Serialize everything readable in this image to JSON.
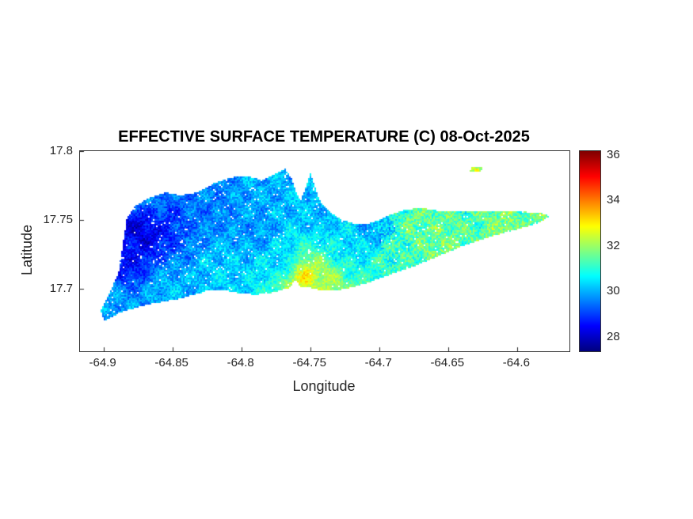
{
  "figure": {
    "background": "#ffffff",
    "axes_color": "#262626"
  },
  "chart_data": {
    "type": "heatmap",
    "title": "EFFECTIVE SURFACE TEMPERATURE (C) 08-Oct-2025",
    "xlabel": "Longitude",
    "ylabel": "Latitude",
    "xlim": [
      -64.917,
      -64.562
    ],
    "ylim": [
      17.655,
      17.8
    ],
    "xticks": [
      -64.9,
      -64.85,
      -64.8,
      -64.75,
      -64.7,
      -64.65,
      -64.6
    ],
    "yticks": [
      17.8,
      17.75,
      17.7
    ],
    "grid": false,
    "colorbar": {
      "min": 27.4,
      "max": 36.2,
      "ticks": [
        28,
        30,
        32,
        34,
        36
      ],
      "colormap": "jet",
      "position": "right"
    },
    "island_outline": [
      [
        -64.899,
        17.677
      ],
      [
        -64.902,
        17.684
      ],
      [
        -64.896,
        17.696
      ],
      [
        -64.889,
        17.712
      ],
      [
        -64.886,
        17.732
      ],
      [
        -64.883,
        17.751
      ],
      [
        -64.877,
        17.76
      ],
      [
        -64.867,
        17.766
      ],
      [
        -64.855,
        17.77
      ],
      [
        -64.844,
        17.768
      ],
      [
        -64.832,
        17.77
      ],
      [
        -64.819,
        17.777
      ],
      [
        -64.807,
        17.781
      ],
      [
        -64.796,
        17.782
      ],
      [
        -64.785,
        17.779
      ],
      [
        -64.774,
        17.784
      ],
      [
        -64.768,
        17.787
      ],
      [
        -64.763,
        17.779
      ],
      [
        -64.76,
        17.77
      ],
      [
        -64.757,
        17.764
      ],
      [
        -64.753,
        17.774
      ],
      [
        -64.75,
        17.784
      ],
      [
        -64.747,
        17.776
      ],
      [
        -64.743,
        17.764
      ],
      [
        -64.736,
        17.756
      ],
      [
        -64.727,
        17.75
      ],
      [
        -64.716,
        17.747
      ],
      [
        -64.705,
        17.748
      ],
      [
        -64.694,
        17.753
      ],
      [
        -64.683,
        17.757
      ],
      [
        -64.671,
        17.759
      ],
      [
        -64.658,
        17.757
      ],
      [
        -64.645,
        17.756
      ],
      [
        -64.632,
        17.757
      ],
      [
        -64.619,
        17.756
      ],
      [
        -64.606,
        17.757
      ],
      [
        -64.594,
        17.756
      ],
      [
        -64.583,
        17.755
      ],
      [
        -64.576,
        17.753
      ],
      [
        -64.584,
        17.748
      ],
      [
        -64.594,
        17.745
      ],
      [
        -64.605,
        17.742
      ],
      [
        -64.616,
        17.739
      ],
      [
        -64.628,
        17.735
      ],
      [
        -64.64,
        17.731
      ],
      [
        -64.652,
        17.726
      ],
      [
        -64.664,
        17.721
      ],
      [
        -64.676,
        17.716
      ],
      [
        -64.688,
        17.712
      ],
      [
        -64.699,
        17.708
      ],
      [
        -64.71,
        17.704
      ],
      [
        -64.721,
        17.701
      ],
      [
        -64.731,
        17.699
      ],
      [
        -64.741,
        17.699
      ],
      [
        -64.75,
        17.701
      ],
      [
        -64.757,
        17.702
      ],
      [
        -64.761,
        17.707
      ],
      [
        -64.765,
        17.701
      ],
      [
        -64.772,
        17.699
      ],
      [
        -64.78,
        17.697
      ],
      [
        -64.79,
        17.696
      ],
      [
        -64.801,
        17.697
      ],
      [
        -64.812,
        17.699
      ],
      [
        -64.823,
        17.699
      ],
      [
        -64.834,
        17.696
      ],
      [
        -64.845,
        17.693
      ],
      [
        -64.856,
        17.691
      ],
      [
        -64.867,
        17.689
      ],
      [
        -64.878,
        17.686
      ],
      [
        -64.888,
        17.683
      ],
      [
        -64.895,
        17.679
      ]
    ],
    "islet_outline": [
      [
        -64.634,
        17.785
      ],
      [
        -64.626,
        17.7855
      ],
      [
        -64.625,
        17.788
      ],
      [
        -64.633,
        17.7885
      ]
    ],
    "temperature_points": [
      [
        -64.872,
        17.742,
        28.2
      ],
      [
        -64.884,
        17.722,
        28.6
      ],
      [
        -64.86,
        17.754,
        28.9
      ],
      [
        -64.895,
        17.688,
        29.9
      ],
      [
        -64.852,
        17.7,
        30.1
      ],
      [
        -64.862,
        17.766,
        29.7
      ],
      [
        -64.822,
        17.762,
        29.6
      ],
      [
        -64.812,
        17.712,
        30.3
      ],
      [
        -64.79,
        17.742,
        29.8
      ],
      [
        -64.782,
        17.772,
        30.0
      ],
      [
        -64.772,
        17.72,
        30.4
      ],
      [
        -64.754,
        17.707,
        32.8
      ],
      [
        -64.744,
        17.702,
        32.2
      ],
      [
        -64.746,
        17.756,
        30.1
      ],
      [
        -64.722,
        17.732,
        30.5
      ],
      [
        -64.706,
        17.744,
        30.0
      ],
      [
        -64.69,
        17.722,
        31.2
      ],
      [
        -64.672,
        17.746,
        31.5
      ],
      [
        -64.652,
        17.73,
        31.7
      ],
      [
        -64.632,
        17.752,
        31.3
      ],
      [
        -64.612,
        17.748,
        31.8
      ],
      [
        -64.592,
        17.752,
        31.5
      ],
      [
        -64.578,
        17.753,
        31.9
      ],
      [
        -64.63,
        17.786,
        32.6
      ]
    ]
  }
}
